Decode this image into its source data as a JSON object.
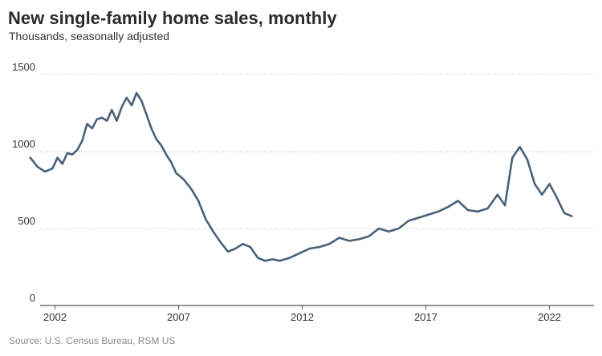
{
  "title": "New single-family home sales, monthly",
  "subtitle": "Thousands, seasonally adjusted",
  "source": "Source: U.S. Census Bureau, RSM US",
  "colors": {
    "line": "#4a6178",
    "grid": "#b8b8b8",
    "axis": "#555555"
  },
  "chart_data": {
    "type": "line",
    "title": "New single-family home sales, monthly",
    "subtitle": "Thousands, seasonally adjusted",
    "xlabel": "",
    "ylabel": "",
    "ylim": [
      0,
      1500
    ],
    "xlim": [
      2001.4,
      2023.8
    ],
    "yticks": [
      0,
      500,
      1000,
      1500
    ],
    "xticks": [
      2002,
      2007,
      2012,
      2017,
      2022
    ],
    "grid": "horizontal dotted",
    "series": [
      {
        "x": [
          2001.0,
          2001.3,
          2001.6,
          2001.9,
          2002.1,
          2002.3,
          2002.5,
          2002.7,
          2002.9,
          2003.1,
          2003.3,
          2003.5,
          2003.7,
          2003.9,
          2004.1,
          2004.3,
          2004.5,
          2004.7,
          2004.9,
          2005.1,
          2005.3,
          2005.5,
          2005.7,
          2005.9,
          2006.1,
          2006.3,
          2006.5,
          2006.7,
          2006.9,
          2007.2,
          2007.5,
          2007.8,
          2008.1,
          2008.4,
          2008.7,
          2009.0,
          2009.3,
          2009.6,
          2009.9,
          2010.2,
          2010.5,
          2010.8,
          2011.1,
          2011.5,
          2011.9,
          2012.3,
          2012.7,
          2013.1,
          2013.5,
          2013.9,
          2014.3,
          2014.7,
          2015.1,
          2015.5,
          2015.9,
          2016.3,
          2016.7,
          2017.1,
          2017.5,
          2017.9,
          2018.3,
          2018.7,
          2019.1,
          2019.5,
          2019.9,
          2020.2,
          2020.5,
          2020.8,
          2021.1,
          2021.4,
          2021.7,
          2022.0,
          2022.3,
          2022.6,
          2022.9
        ],
        "y": [
          960,
          900,
          870,
          890,
          960,
          920,
          990,
          980,
          1010,
          1070,
          1180,
          1150,
          1210,
          1220,
          1200,
          1270,
          1200,
          1290,
          1350,
          1300,
          1380,
          1330,
          1240,
          1150,
          1080,
          1040,
          980,
          930,
          860,
          820,
          760,
          680,
          560,
          480,
          410,
          350,
          370,
          400,
          380,
          310,
          290,
          300,
          290,
          310,
          340,
          370,
          380,
          400,
          440,
          420,
          430,
          450,
          500,
          480,
          500,
          550,
          570,
          590,
          610,
          640,
          680,
          620,
          610,
          630,
          720,
          650,
          960,
          1030,
          950,
          790,
          720,
          790,
          700,
          600,
          580
        ]
      }
    ]
  }
}
